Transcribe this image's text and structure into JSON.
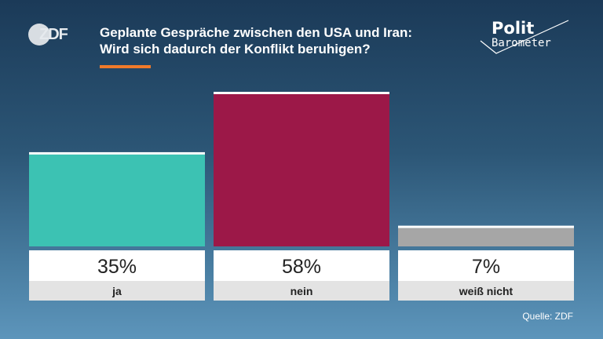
{
  "header": {
    "logo_text": "ZDF",
    "title_line1": "Geplante Gespräche zwischen den USA und Iran:",
    "title_line2": "Wird sich dadurch der Konflikt beruhigen?",
    "brand_line1": "Polit",
    "brand_line2": "Barometer"
  },
  "colors": {
    "accent": "#f07a2a",
    "ja": "#3cc2b3",
    "nein": "#9c1848",
    "weiss_nicht": "#a6a6a6"
  },
  "chart_data": {
    "type": "bar",
    "title": "Geplante Gespräche zwischen den USA und Iran: Wird sich dadurch der Konflikt beruhigen?",
    "categories": [
      "ja",
      "nein",
      "weiß nicht"
    ],
    "values": [
      35,
      58,
      7
    ],
    "value_labels": [
      "35%",
      "58%",
      "7%"
    ],
    "unit": "%",
    "ylim": [
      0,
      60
    ],
    "grid": false
  },
  "footer": {
    "source": "Quelle: ZDF"
  }
}
